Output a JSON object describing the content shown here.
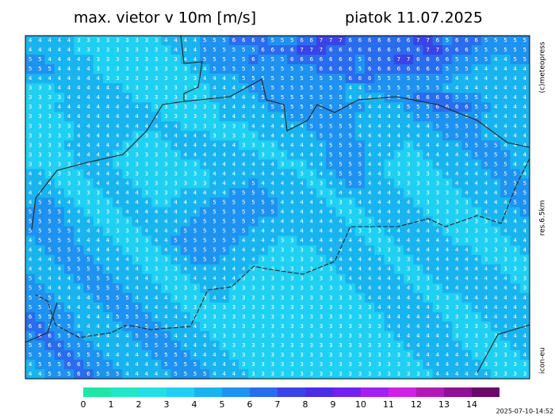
{
  "header": {
    "title": "max. vietor v 10m [m/s]",
    "date": "piatok 11.07.2025"
  },
  "side": {
    "copyright": "(c)meteopress",
    "resolution": "res.6.5km",
    "model": "icon-eu"
  },
  "timestamp": "2025-07-10-14:52",
  "colorbar": {
    "labels": [
      0,
      1,
      2,
      3,
      4,
      5,
      6,
      7,
      8,
      9,
      10,
      11,
      12,
      13,
      14
    ],
    "colors": [
      "#1fe6a6",
      "#22e6c8",
      "#22dfe6",
      "#1fd0f2",
      "#18b4f0",
      "#1e92f0",
      "#2a6cee",
      "#3a44e6",
      "#4c2ce8",
      "#7222f0",
      "#a420f0",
      "#d020e6",
      "#b418b4",
      "#920e92",
      "#6a0a6a"
    ]
  },
  "grid": [
    [
      4,
      4,
      4,
      4,
      4,
      3,
      3,
      3,
      3,
      3,
      3,
      3,
      3,
      3,
      4,
      4,
      4,
      4,
      5,
      5,
      5,
      6,
      6,
      6,
      6,
      5,
      5,
      5,
      6,
      6,
      7,
      7,
      7,
      6,
      6,
      6,
      6,
      6,
      6,
      6,
      7,
      7,
      6,
      5,
      6,
      6,
      6,
      5,
      5,
      5,
      5,
      5
    ],
    [
      4,
      4,
      4,
      4,
      4,
      3,
      3,
      3,
      3,
      3,
      3,
      3,
      3,
      3,
      3,
      4,
      4,
      4,
      5,
      5,
      5,
      5,
      5,
      5,
      6,
      6,
      6,
      6,
      7,
      7,
      7,
      6,
      6,
      6,
      6,
      6,
      6,
      6,
      6,
      6,
      6,
      7,
      7,
      6,
      6,
      6,
      5,
      5,
      5,
      5,
      5,
      5
    ],
    [
      5,
      5,
      4,
      4,
      4,
      4,
      4,
      3,
      3,
      3,
      3,
      3,
      3,
      3,
      3,
      3,
      4,
      4,
      5,
      5,
      5,
      5,
      5,
      6,
      5,
      5,
      5,
      6,
      6,
      6,
      6,
      6,
      6,
      6,
      5,
      6,
      6,
      6,
      7,
      7,
      6,
      6,
      6,
      6,
      5,
      5,
      5,
      5,
      4,
      4,
      5,
      5
    ],
    [
      5,
      5,
      5,
      4,
      4,
      4,
      4,
      3,
      3,
      3,
      3,
      3,
      3,
      3,
      3,
      3,
      3,
      4,
      4,
      5,
      5,
      5,
      5,
      5,
      5,
      5,
      5,
      5,
      5,
      5,
      6,
      6,
      6,
      6,
      5,
      6,
      6,
      6,
      6,
      6,
      6,
      6,
      6,
      5,
      5,
      5,
      4,
      4,
      4,
      4,
      4,
      4
    ],
    [
      4,
      4,
      4,
      4,
      4,
      4,
      4,
      4,
      3,
      3,
      3,
      3,
      3,
      3,
      3,
      3,
      3,
      3,
      4,
      4,
      4,
      4,
      5,
      5,
      5,
      5,
      5,
      5,
      5,
      5,
      5,
      5,
      5,
      6,
      6,
      6,
      5,
      5,
      5,
      5,
      5,
      5,
      5,
      5,
      4,
      4,
      4,
      4,
      4,
      4,
      4,
      4
    ],
    [
      3,
      3,
      3,
      4,
      4,
      4,
      4,
      4,
      4,
      4,
      3,
      3,
      3,
      3,
      3,
      3,
      3,
      3,
      3,
      4,
      4,
      4,
      4,
      5,
      5,
      5,
      5,
      5,
      5,
      5,
      5,
      5,
      5,
      4,
      4,
      5,
      5,
      5,
      5,
      5,
      5,
      5,
      5,
      4,
      4,
      4,
      4,
      4,
      4,
      4,
      4,
      4
    ],
    [
      3,
      3,
      3,
      3,
      4,
      4,
      4,
      4,
      4,
      4,
      4,
      3,
      3,
      3,
      3,
      3,
      3,
      3,
      3,
      4,
      4,
      4,
      4,
      4,
      5,
      5,
      5,
      5,
      5,
      5,
      5,
      5,
      5,
      4,
      4,
      4,
      4,
      5,
      5,
      5,
      6,
      6,
      6,
      6,
      5,
      5,
      5,
      4,
      4,
      4,
      4,
      4
    ],
    [
      3,
      3,
      3,
      4,
      4,
      4,
      4,
      4,
      4,
      4,
      4,
      4,
      4,
      3,
      3,
      3,
      3,
      3,
      3,
      3,
      4,
      4,
      4,
      4,
      4,
      5,
      5,
      5,
      5,
      5,
      5,
      5,
      5,
      5,
      5,
      4,
      4,
      4,
      4,
      5,
      5,
      5,
      6,
      6,
      6,
      6,
      5,
      5,
      4,
      4,
      4,
      4
    ],
    [
      3,
      3,
      3,
      3,
      4,
      4,
      4,
      4,
      4,
      4,
      4,
      4,
      4,
      4,
      3,
      3,
      3,
      3,
      3,
      3,
      4,
      4,
      4,
      4,
      4,
      4,
      4,
      5,
      5,
      5,
      5,
      5,
      5,
      5,
      4,
      4,
      4,
      4,
      4,
      4,
      5,
      5,
      5,
      5,
      5,
      5,
      5,
      4,
      4,
      4,
      4,
      4
    ],
    [
      3,
      3,
      3,
      3,
      3,
      4,
      4,
      4,
      4,
      4,
      4,
      4,
      4,
      4,
      4,
      4,
      3,
      3,
      3,
      3,
      3,
      3,
      3,
      4,
      4,
      4,
      4,
      4,
      4,
      5,
      5,
      5,
      5,
      5,
      4,
      4,
      4,
      4,
      4,
      4,
      4,
      4,
      5,
      5,
      5,
      5,
      5,
      4,
      4,
      4,
      4,
      4
    ],
    [
      3,
      3,
      3,
      3,
      3,
      4,
      4,
      4,
      4,
      4,
      4,
      3,
      3,
      3,
      4,
      4,
      4,
      4,
      4,
      3,
      3,
      3,
      3,
      3,
      4,
      4,
      4,
      4,
      4,
      4,
      5,
      5,
      5,
      5,
      4,
      4,
      4,
      4,
      4,
      4,
      4,
      4,
      4,
      5,
      5,
      5,
      5,
      4,
      4,
      4,
      4,
      4
    ],
    [
      3,
      3,
      3,
      3,
      4,
      4,
      4,
      4,
      4,
      4,
      3,
      3,
      3,
      3,
      3,
      4,
      4,
      4,
      4,
      4,
      4,
      4,
      3,
      3,
      3,
      3,
      4,
      4,
      4,
      4,
      4,
      5,
      5,
      5,
      5,
      4,
      4,
      4,
      4,
      3,
      4,
      4,
      4,
      4,
      4,
      5,
      5,
      5,
      5,
      4,
      4,
      4
    ],
    [
      3,
      3,
      3,
      3,
      3,
      4,
      4,
      4,
      4,
      3,
      3,
      3,
      3,
      3,
      3,
      3,
      4,
      4,
      4,
      4,
      4,
      4,
      4,
      4,
      3,
      3,
      3,
      4,
      4,
      4,
      4,
      5,
      5,
      5,
      5,
      4,
      4,
      4,
      3,
      3,
      3,
      4,
      4,
      4,
      4,
      4,
      5,
      5,
      5,
      5,
      4,
      4
    ],
    [
      3,
      3,
      3,
      3,
      3,
      4,
      4,
      4,
      4,
      3,
      3,
      3,
      3,
      3,
      3,
      3,
      3,
      3,
      4,
      4,
      4,
      4,
      4,
      4,
      4,
      4,
      3,
      3,
      3,
      4,
      4,
      5,
      5,
      5,
      5,
      4,
      4,
      3,
      3,
      3,
      3,
      3,
      4,
      4,
      4,
      4,
      4,
      5,
      5,
      5,
      4,
      4
    ],
    [
      4,
      4,
      3,
      3,
      3,
      3,
      4,
      4,
      4,
      4,
      3,
      3,
      3,
      3,
      3,
      3,
      3,
      3,
      3,
      4,
      4,
      4,
      4,
      4,
      4,
      4,
      4,
      4,
      3,
      3,
      4,
      4,
      5,
      5,
      5,
      4,
      4,
      3,
      3,
      3,
      3,
      3,
      3,
      4,
      4,
      4,
      4,
      4,
      5,
      5,
      5,
      4
    ],
    [
      4,
      4,
      4,
      3,
      3,
      3,
      3,
      4,
      4,
      4,
      4,
      3,
      3,
      3,
      3,
      3,
      3,
      3,
      3,
      4,
      4,
      4,
      4,
      5,
      4,
      4,
      4,
      4,
      4,
      3,
      3,
      4,
      4,
      5,
      5,
      4,
      4,
      4,
      3,
      3,
      3,
      3,
      3,
      3,
      4,
      4,
      4,
      4,
      4,
      5,
      5,
      5
    ],
    [
      4,
      4,
      4,
      4,
      3,
      3,
      3,
      3,
      4,
      4,
      4,
      4,
      3,
      3,
      3,
      3,
      4,
      4,
      4,
      4,
      4,
      5,
      5,
      5,
      5,
      4,
      4,
      4,
      4,
      4,
      3,
      3,
      4,
      4,
      4,
      4,
      4,
      4,
      4,
      3,
      3,
      3,
      3,
      3,
      3,
      4,
      4,
      4,
      4,
      5,
      5,
      5
    ],
    [
      4,
      5,
      5,
      4,
      4,
      3,
      3,
      3,
      3,
      4,
      4,
      4,
      4,
      3,
      3,
      4,
      4,
      4,
      4,
      5,
      5,
      5,
      5,
      5,
      5,
      5,
      4,
      4,
      4,
      4,
      4,
      3,
      3,
      3,
      4,
      4,
      4,
      4,
      4,
      4,
      3,
      3,
      3,
      3,
      3,
      3,
      4,
      4,
      4,
      4,
      5,
      5
    ],
    [
      5,
      5,
      5,
      5,
      4,
      4,
      3,
      3,
      3,
      3,
      4,
      4,
      4,
      4,
      4,
      4,
      4,
      4,
      5,
      5,
      5,
      5,
      5,
      5,
      5,
      5,
      4,
      4,
      4,
      4,
      4,
      4,
      3,
      3,
      3,
      4,
      4,
      4,
      4,
      4,
      4,
      3,
      3,
      3,
      3,
      3,
      3,
      4,
      4,
      4,
      4,
      5
    ],
    [
      5,
      5,
      5,
      5,
      4,
      4,
      4,
      3,
      3,
      3,
      3,
      4,
      4,
      4,
      4,
      4,
      4,
      5,
      5,
      5,
      5,
      5,
      5,
      5,
      4,
      4,
      4,
      4,
      4,
      4,
      4,
      4,
      4,
      3,
      3,
      3,
      4,
      4,
      4,
      4,
      4,
      4,
      3,
      3,
      3,
      3,
      3,
      3,
      4,
      4,
      4,
      4
    ],
    [
      5,
      5,
      5,
      5,
      5,
      4,
      4,
      4,
      3,
      3,
      3,
      3,
      4,
      4,
      4,
      4,
      5,
      5,
      5,
      5,
      5,
      5,
      5,
      4,
      4,
      4,
      4,
      4,
      4,
      4,
      4,
      4,
      4,
      4,
      3,
      3,
      3,
      4,
      4,
      4,
      4,
      4,
      4,
      3,
      3,
      3,
      3,
      3,
      3,
      4,
      4,
      4
    ],
    [
      4,
      5,
      5,
      5,
      5,
      4,
      4,
      4,
      4,
      3,
      3,
      3,
      3,
      4,
      4,
      5,
      5,
      5,
      5,
      5,
      5,
      5,
      4,
      4,
      4,
      4,
      3,
      3,
      4,
      4,
      4,
      4,
      4,
      4,
      4,
      3,
      3,
      3,
      4,
      4,
      4,
      4,
      4,
      4,
      3,
      3,
      3,
      3,
      3,
      3,
      4,
      4
    ],
    [
      4,
      4,
      5,
      5,
      5,
      5,
      4,
      4,
      4,
      4,
      3,
      3,
      3,
      3,
      4,
      4,
      5,
      5,
      5,
      5,
      5,
      4,
      4,
      4,
      4,
      3,
      3,
      3,
      3,
      3,
      4,
      4,
      4,
      4,
      4,
      4,
      3,
      3,
      3,
      4,
      4,
      4,
      4,
      4,
      4,
      4,
      3,
      3,
      3,
      3,
      3,
      4
    ],
    [
      4,
      4,
      4,
      5,
      5,
      5,
      5,
      4,
      4,
      4,
      4,
      3,
      3,
      3,
      3,
      4,
      4,
      5,
      5,
      5,
      4,
      4,
      4,
      4,
      3,
      3,
      3,
      3,
      3,
      3,
      3,
      4,
      4,
      4,
      4,
      4,
      4,
      3,
      3,
      3,
      4,
      4,
      4,
      4,
      4,
      4,
      4,
      3,
      3,
      3,
      3,
      3
    ],
    [
      4,
      4,
      4,
      4,
      5,
      5,
      5,
      5,
      4,
      4,
      4,
      4,
      3,
      3,
      3,
      3,
      4,
      4,
      4,
      4,
      4,
      4,
      4,
      3,
      3,
      3,
      3,
      3,
      3,
      3,
      3,
      3,
      4,
      4,
      4,
      4,
      4,
      4,
      3,
      3,
      3,
      4,
      4,
      4,
      4,
      4,
      4,
      4,
      4,
      3,
      3,
      3
    ],
    [
      5,
      4,
      4,
      4,
      4,
      5,
      5,
      5,
      5,
      4,
      4,
      4,
      4,
      3,
      3,
      3,
      3,
      4,
      4,
      4,
      4,
      4,
      3,
      3,
      3,
      3,
      3,
      3,
      3,
      3,
      3,
      3,
      3,
      4,
      4,
      4,
      4,
      4,
      4,
      3,
      3,
      3,
      4,
      4,
      4,
      4,
      4,
      4,
      4,
      4,
      3,
      3
    ],
    [
      5,
      5,
      4,
      4,
      4,
      4,
      5,
      5,
      5,
      5,
      4,
      4,
      4,
      4,
      3,
      3,
      3,
      3,
      4,
      4,
      4,
      3,
      3,
      3,
      3,
      3,
      3,
      3,
      3,
      3,
      3,
      3,
      3,
      3,
      4,
      4,
      4,
      4,
      4,
      4,
      3,
      3,
      3,
      4,
      4,
      4,
      4,
      4,
      4,
      4,
      4,
      3
    ],
    [
      5,
      5,
      5,
      4,
      4,
      4,
      4,
      5,
      5,
      5,
      5,
      4,
      4,
      4,
      4,
      3,
      3,
      3,
      3,
      4,
      4,
      3,
      3,
      3,
      3,
      3,
      3,
      3,
      3,
      3,
      3,
      3,
      3,
      3,
      3,
      4,
      4,
      4,
      4,
      4,
      4,
      3,
      3,
      3,
      3,
      4,
      4,
      4,
      4,
      4,
      4,
      4
    ],
    [
      5,
      5,
      5,
      5,
      4,
      4,
      4,
      4,
      5,
      5,
      5,
      5,
      4,
      4,
      4,
      4,
      3,
      3,
      3,
      3,
      3,
      3,
      3,
      3,
      3,
      3,
      3,
      3,
      3,
      3,
      3,
      3,
      3,
      3,
      3,
      3,
      4,
      4,
      4,
      4,
      4,
      4,
      3,
      3,
      3,
      3,
      4,
      4,
      4,
      4,
      4,
      4
    ],
    [
      6,
      5,
      5,
      5,
      5,
      4,
      4,
      4,
      4,
      5,
      5,
      5,
      5,
      4,
      4,
      4,
      4,
      3,
      3,
      3,
      3,
      3,
      3,
      3,
      3,
      3,
      3,
      3,
      3,
      3,
      3,
      3,
      3,
      3,
      3,
      3,
      3,
      4,
      4,
      4,
      4,
      4,
      4,
      3,
      3,
      3,
      3,
      4,
      4,
      4,
      4,
      4
    ],
    [
      6,
      6,
      5,
      5,
      5,
      4,
      4,
      4,
      4,
      4,
      5,
      5,
      5,
      5,
      4,
      4,
      4,
      4,
      3,
      3,
      3,
      3,
      3,
      3,
      3,
      3,
      3,
      3,
      3,
      3,
      3,
      3,
      3,
      3,
      3,
      3,
      3,
      4,
      4,
      4,
      4,
      4,
      4,
      4,
      3,
      3,
      3,
      3,
      4,
      4,
      4,
      4
    ],
    [
      5,
      6,
      6,
      5,
      5,
      5,
      4,
      4,
      4,
      4,
      4,
      5,
      5,
      5,
      5,
      4,
      4,
      4,
      4,
      3,
      3,
      3,
      3,
      3,
      3,
      3,
      3,
      3,
      3,
      3,
      3,
      3,
      3,
      3,
      3,
      3,
      3,
      3,
      4,
      4,
      4,
      4,
      4,
      4,
      3,
      3,
      3,
      3,
      3,
      4,
      4,
      4
    ],
    [
      5,
      5,
      6,
      6,
      5,
      5,
      5,
      4,
      4,
      4,
      4,
      4,
      5,
      5,
      5,
      5,
      4,
      4,
      4,
      4,
      3,
      3,
      3,
      3,
      3,
      3,
      3,
      3,
      3,
      3,
      3,
      3,
      3,
      3,
      3,
      3,
      3,
      3,
      3,
      4,
      4,
      4,
      4,
      4,
      4,
      3,
      3,
      3,
      3,
      3,
      4,
      4
    ],
    [
      5,
      5,
      5,
      6,
      6,
      5,
      5,
      5,
      4,
      4,
      4,
      4,
      4,
      5,
      5,
      5,
      5,
      4,
      4,
      4,
      4,
      3,
      3,
      3,
      3,
      3,
      3,
      3,
      3,
      3,
      3,
      3,
      3,
      3,
      3,
      3,
      3,
      3,
      3,
      3,
      4,
      4,
      4,
      4,
      4,
      4,
      3,
      3,
      3,
      3,
      3,
      4
    ],
    [
      4,
      5,
      5,
      5,
      6,
      6,
      5,
      5,
      5,
      4,
      4,
      4,
      4,
      4,
      5,
      5,
      5,
      5,
      4,
      4,
      4,
      4,
      3,
      3,
      3,
      3,
      3,
      3,
      3,
      3,
      3,
      3,
      3,
      3,
      3,
      3,
      3,
      3,
      3,
      3,
      3,
      4,
      4,
      4,
      4,
      4,
      4,
      3,
      3,
      3,
      3,
      3
    ],
    [
      4,
      4,
      5,
      5,
      5,
      6,
      6,
      5,
      5,
      5,
      4,
      4,
      4,
      4,
      4,
      5,
      5,
      5,
      5,
      4,
      4,
      4,
      4,
      3,
      3,
      3,
      3,
      3,
      3,
      3,
      3,
      3,
      3,
      3,
      3,
      3,
      3,
      3,
      3,
      3,
      3,
      3,
      4,
      4,
      4,
      4,
      4,
      4,
      3,
      3,
      3,
      3
    ]
  ]
}
